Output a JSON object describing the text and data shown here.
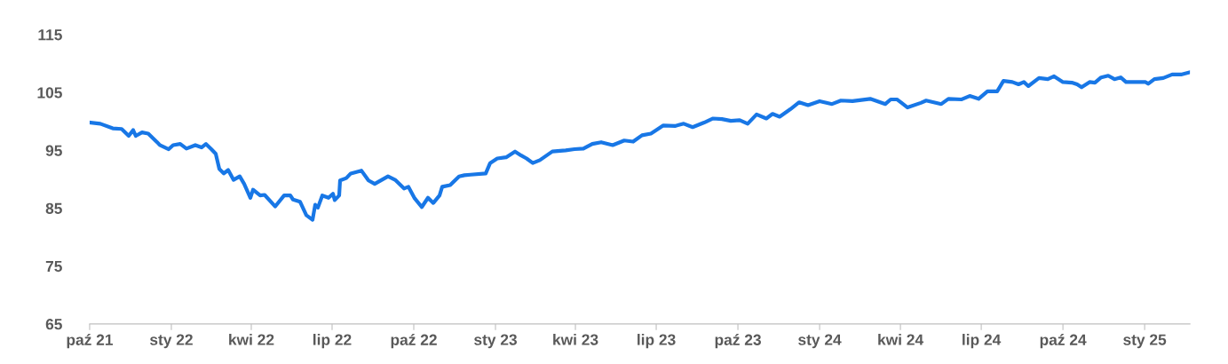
{
  "chart_data": {
    "type": "line",
    "x": [
      "2021-10-02",
      "2021-10-13",
      "2021-10-27",
      "2021-11-06",
      "2021-11-14",
      "2021-11-19",
      "2021-11-22",
      "2021-11-29",
      "2021-12-06",
      "2021-12-16",
      "2021-12-19",
      "2021-12-29",
      "2022-01-03",
      "2022-01-11",
      "2022-01-18",
      "2022-01-28",
      "2022-02-04",
      "2022-02-09",
      "2022-02-15",
      "2022-02-20",
      "2022-02-24",
      "2022-03-01",
      "2022-03-06",
      "2022-03-12",
      "2022-03-19",
      "2022-03-24",
      "2022-03-31",
      "2022-04-03",
      "2022-04-11",
      "2022-04-16",
      "2022-04-28",
      "2022-05-08",
      "2022-05-15",
      "2022-05-18",
      "2022-05-26",
      "2022-06-02",
      "2022-06-09",
      "2022-06-12",
      "2022-06-15",
      "2022-06-20",
      "2022-06-27",
      "2022-07-02",
      "2022-07-04",
      "2022-07-09",
      "2022-07-10",
      "2022-07-17",
      "2022-07-22",
      "2022-08-03",
      "2022-08-11",
      "2022-08-18",
      "2022-09-02",
      "2022-09-10",
      "2022-09-20",
      "2022-09-25",
      "2022-10-02",
      "2022-10-10",
      "2022-10-17",
      "2022-10-23",
      "2022-10-30",
      "2022-11-02",
      "2022-11-11",
      "2022-11-21",
      "2022-11-27",
      "2022-12-04",
      "2022-12-21",
      "2022-12-26",
      "2023-01-03",
      "2023-01-13",
      "2023-01-23",
      "2023-01-30",
      "2023-02-05",
      "2023-02-12",
      "2023-02-20",
      "2023-03-06",
      "2023-03-21",
      "2023-03-31",
      "2023-04-10",
      "2023-04-20",
      "2023-04-30",
      "2023-05-13",
      "2023-05-26",
      "2023-06-05",
      "2023-06-15",
      "2023-06-25",
      "2023-06-30",
      "2023-07-09",
      "2023-07-22",
      "2023-08-01",
      "2023-08-11",
      "2023-08-24",
      "2023-09-03",
      "2023-09-13",
      "2023-09-23",
      "2023-10-03",
      "2023-10-12",
      "2023-10-22",
      "2023-11-02",
      "2023-11-09",
      "2023-11-17",
      "2023-11-29",
      "2023-12-09",
      "2023-12-19",
      "2024-01-01",
      "2024-01-15",
      "2024-01-25",
      "2024-02-07",
      "2024-02-27",
      "2024-03-15",
      "2024-03-21",
      "2024-03-28",
      "2024-04-09",
      "2024-04-24",
      "2024-04-30",
      "2024-05-17",
      "2024-05-25",
      "2024-06-09",
      "2024-06-18",
      "2024-06-28",
      "2024-07-08",
      "2024-07-19",
      "2024-07-26",
      "2024-08-05",
      "2024-08-12",
      "2024-08-18",
      "2024-08-23",
      "2024-09-04",
      "2024-09-14",
      "2024-09-21",
      "2024-10-01",
      "2024-10-11",
      "2024-10-17",
      "2024-10-22",
      "2024-10-31",
      "2024-11-06",
      "2024-11-13",
      "2024-11-21",
      "2024-11-28",
      "2024-12-05",
      "2024-12-11",
      "2025-01-02",
      "2025-01-05",
      "2025-01-12",
      "2025-01-22",
      "2025-02-01",
      "2025-02-11",
      "2025-02-21"
    ],
    "series": [
      {
        "color": "#1877e6",
        "values": [
          99.8,
          99.6,
          98.8,
          98.7,
          97.5,
          98.5,
          97.5,
          98.1,
          97.9,
          96.4,
          95.9,
          95.2,
          95.9,
          96.1,
          95.3,
          95.9,
          95.5,
          96.1,
          95.2,
          94.4,
          91.8,
          91.0,
          91.6,
          89.9,
          90.5,
          89.2,
          86.8,
          88.2,
          87.2,
          87.3,
          85.3,
          87.2,
          87.2,
          86.5,
          86.1,
          83.8,
          83.0,
          85.6,
          85.1,
          87.2,
          86.8,
          87.5,
          86.4,
          87.2,
          89.8,
          90.2,
          91.0,
          91.5,
          89.8,
          89.2,
          90.5,
          89.9,
          88.4,
          88.7,
          86.7,
          85.2,
          86.8,
          85.9,
          87.2,
          88.7,
          89.0,
          90.5,
          90.7,
          90.8,
          91.0,
          92.8,
          93.6,
          93.8,
          94.8,
          94.1,
          93.6,
          92.8,
          93.3,
          94.8,
          95.0,
          95.2,
          95.3,
          96.1,
          96.4,
          95.9,
          96.7,
          96.5,
          97.6,
          97.9,
          98.4,
          99.3,
          99.2,
          99.6,
          99.0,
          99.8,
          100.5,
          100.4,
          100.1,
          100.2,
          99.6,
          101.2,
          100.5,
          101.3,
          100.8,
          102.1,
          103.3,
          102.8,
          103.5,
          103.0,
          103.6,
          103.5,
          103.9,
          103.0,
          103.8,
          103.8,
          102.4,
          103.2,
          103.6,
          103.0,
          103.9,
          103.8,
          104.4,
          103.9,
          105.2,
          105.2,
          107.0,
          106.8,
          106.4,
          106.8,
          106.1,
          107.5,
          107.3,
          107.8,
          106.8,
          106.7,
          106.4,
          105.9,
          106.8,
          106.7,
          107.6,
          107.9,
          107.3,
          107.6,
          106.8,
          106.8,
          106.5,
          107.3,
          107.5,
          108.1,
          108.1,
          108.5
        ]
      }
    ],
    "xlim": [
      "2021-10-01",
      "2025-02-21"
    ],
    "xticks": [
      {
        "value": "2021-10-01",
        "label": "paź 21"
      },
      {
        "value": "2022-01-01",
        "label": "sty 22"
      },
      {
        "value": "2022-04-01",
        "label": "kwi 22"
      },
      {
        "value": "2022-07-01",
        "label": "lip 22"
      },
      {
        "value": "2022-10-01",
        "label": "paź 22"
      },
      {
        "value": "2023-01-01",
        "label": "sty 23"
      },
      {
        "value": "2023-04-01",
        "label": "kwi 23"
      },
      {
        "value": "2023-07-01",
        "label": "lip 23"
      },
      {
        "value": "2023-10-01",
        "label": "paź 23"
      },
      {
        "value": "2024-01-01",
        "label": "sty 24"
      },
      {
        "value": "2024-04-01",
        "label": "kwi 24"
      },
      {
        "value": "2024-07-01",
        "label": "lip 24"
      },
      {
        "value": "2024-10-01",
        "label": "paź 24"
      },
      {
        "value": "2025-01-01",
        "label": "sty 25"
      }
    ],
    "ylim": [
      65,
      115
    ],
    "yticks": [
      65,
      75,
      85,
      95,
      105,
      115
    ],
    "grid": false,
    "marker": "none",
    "line_style": "solid"
  }
}
